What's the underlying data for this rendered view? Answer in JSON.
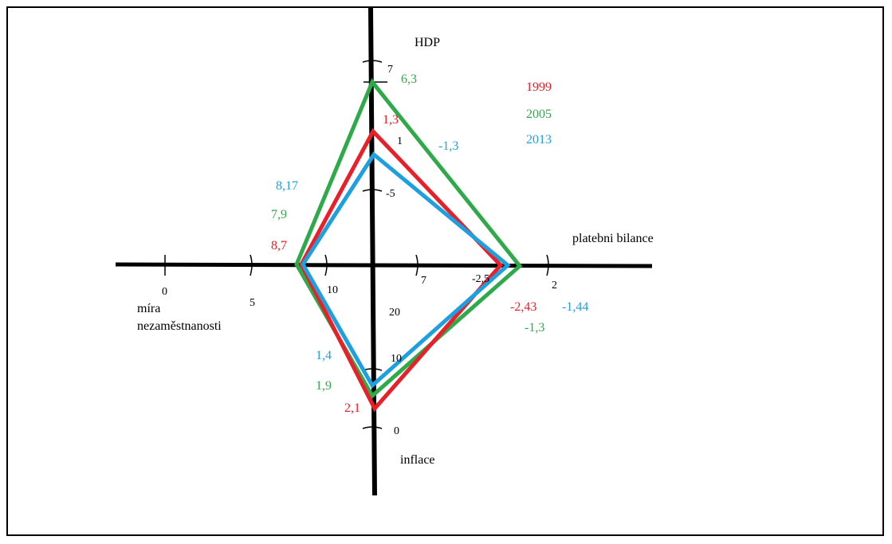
{
  "colors": {
    "red": "#e8202a",
    "green": "#2faa4a",
    "blue": "#1ea0e0",
    "axis": "#000000"
  },
  "axes": {
    "top": "HDP",
    "right": "platebni bilance",
    "bottom": "inflace",
    "left_line1": "míra",
    "left_line2": "nezaměstnanosti"
  },
  "ticks": {
    "hdp": [
      "7",
      "1",
      "-5"
    ],
    "platebni": [
      "7",
      "-2,5",
      "2"
    ],
    "inflace": [
      "20",
      "10",
      "0"
    ],
    "mira": [
      "0",
      "5",
      "10"
    ]
  },
  "legend": [
    {
      "label": "1999",
      "color": "#e8202a"
    },
    {
      "label": "2005",
      "color": "#2faa4a"
    },
    {
      "label": "2013",
      "color": "#1ea0e0"
    }
  ],
  "values": {
    "hdp": [
      "1,3",
      "6,3",
      "-1,3"
    ],
    "mira": [
      "8,17",
      "7,9",
      "8,7"
    ],
    "platebni_red": "-2,43",
    "platebni_blue": "-1,44",
    "platebni_green": "-1,3",
    "inflace": [
      "1,4",
      "1,9",
      "2,1"
    ]
  }
}
